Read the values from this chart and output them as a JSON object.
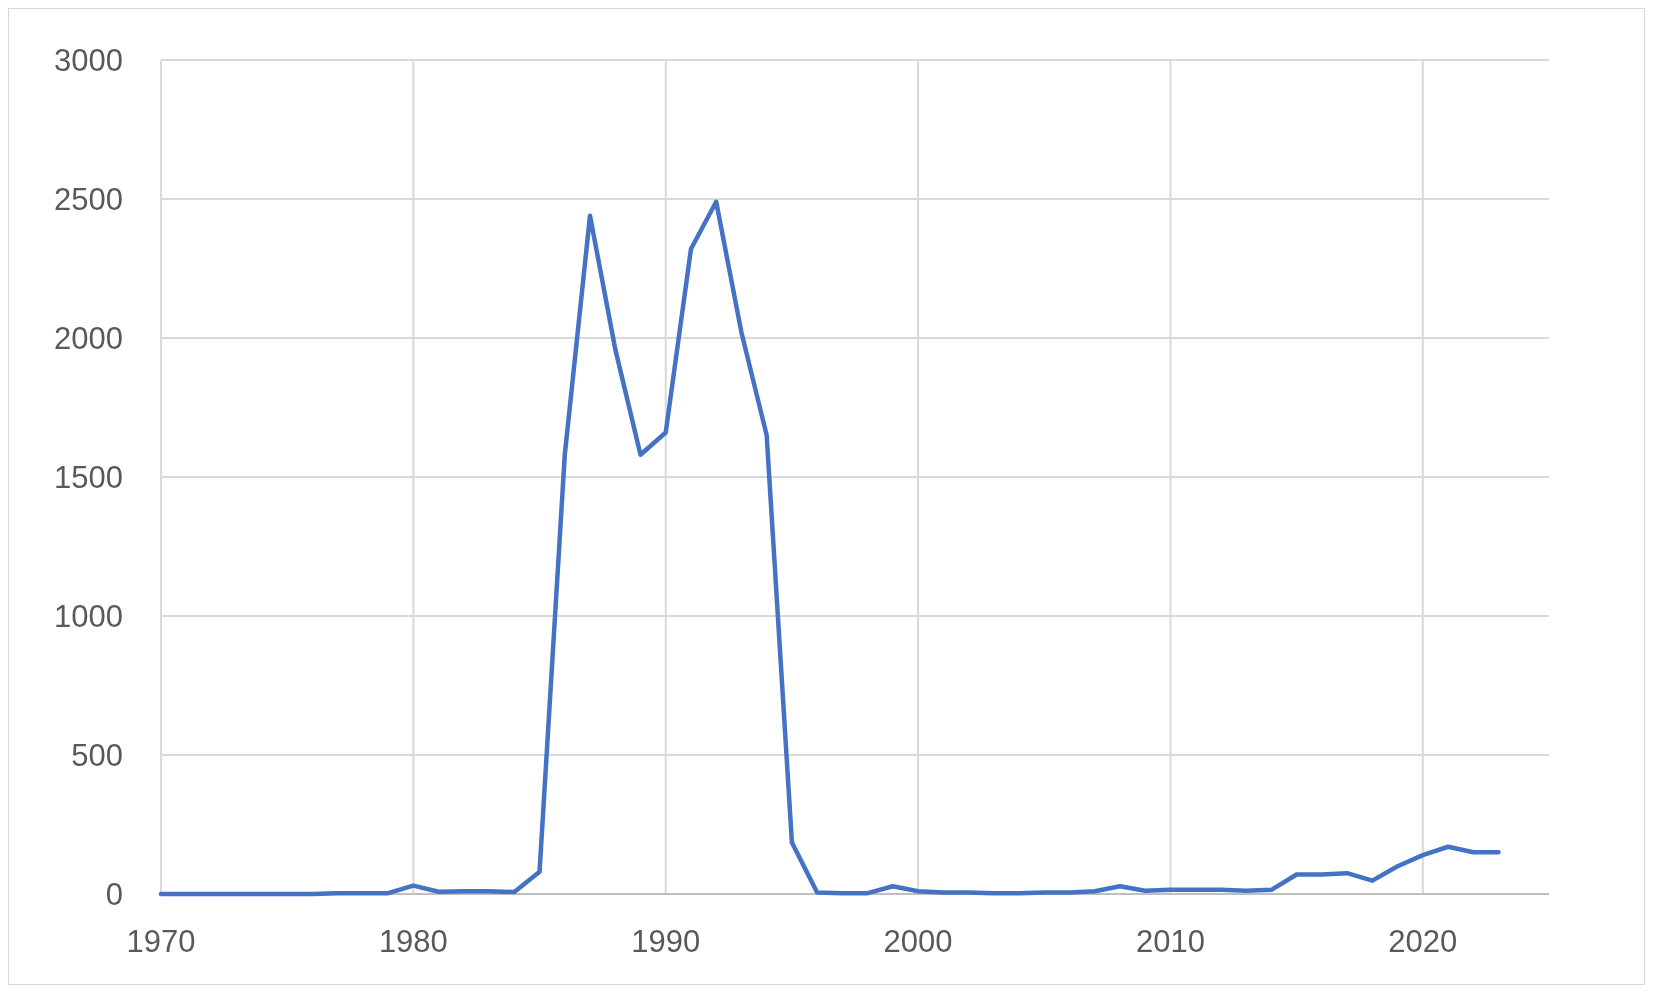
{
  "chart_data": {
    "type": "line",
    "xlim": [
      1970,
      2025
    ],
    "xticks": [
      1970,
      1980,
      1990,
      2000,
      2010,
      2020
    ],
    "ylim": [
      0,
      3000
    ],
    "yticks": [
      0,
      500,
      1000,
      1500,
      2000,
      2500,
      3000
    ],
    "grid": true,
    "marker": "none",
    "line_style": "solid",
    "x": [
      1970,
      1971,
      1972,
      1973,
      1974,
      1975,
      1976,
      1977,
      1978,
      1979,
      1980,
      1981,
      1982,
      1983,
      1984,
      1985,
      1986,
      1987,
      1988,
      1989,
      1990,
      1991,
      1992,
      1993,
      1994,
      1995,
      1996,
      1997,
      1998,
      1999,
      2000,
      2001,
      2002,
      2003,
      2004,
      2005,
      2006,
      2007,
      2008,
      2009,
      2010,
      2011,
      2012,
      2013,
      2014,
      2015,
      2016,
      2017,
      2018,
      2019,
      2020,
      2021,
      2022,
      2023
    ],
    "series": [
      {
        "color": "#4472c4",
        "values": [
          0,
          0,
          0,
          0,
          0,
          0,
          0,
          3,
          3,
          3,
          30,
          8,
          10,
          10,
          7,
          80,
          1580,
          2440,
          1960,
          1580,
          1660,
          2320,
          2490,
          2020,
          1650,
          185,
          5,
          3,
          3,
          28,
          10,
          5,
          5,
          3,
          3,
          5,
          5,
          10,
          28,
          12,
          15,
          15,
          15,
          12,
          15,
          70,
          70,
          75,
          48,
          100,
          140,
          170,
          150,
          150
        ]
      }
    ]
  }
}
